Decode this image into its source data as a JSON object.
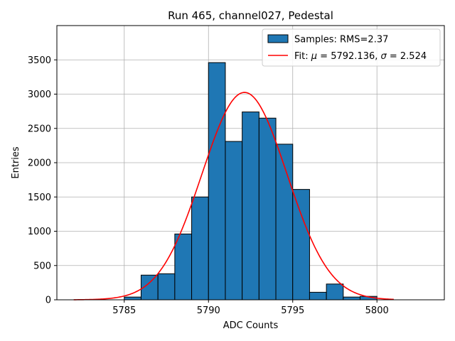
{
  "chart_data": {
    "type": "bar",
    "title": "Run 465, channel027, Pedestal",
    "xlabel": "ADC Counts",
    "ylabel": "Entries",
    "xlim": [
      5781.0,
      5804.0
    ],
    "ylim": [
      0,
      4000
    ],
    "grid": true,
    "xticks": [
      5785,
      5790,
      5795,
      5800
    ],
    "yticks": [
      0,
      500,
      1000,
      1500,
      2000,
      2500,
      3000,
      3500
    ],
    "histogram": {
      "name": "Samples: RMS=2.37",
      "color": "#1f77b4",
      "bin_edges": [
        5785,
        5786,
        5787,
        5788,
        5789,
        5790,
        5791,
        5792,
        5793,
        5794,
        5795,
        5796,
        5797,
        5798,
        5799,
        5800
      ],
      "counts": [
        40,
        360,
        380,
        960,
        1500,
        3460,
        2310,
        2740,
        2650,
        2270,
        1610,
        110,
        230,
        40,
        50
      ]
    },
    "fit": {
      "name": "Fit: μ = 5792.136, σ = 2.524",
      "name_prefix": "Fit: ",
      "mu_symbol": "μ",
      "mu_text": " = 5792.136, ",
      "sigma_symbol": "σ",
      "sigma_text": " = 2.524",
      "color": "#ff0000",
      "mu": 5792.136,
      "sigma": 2.524,
      "amplitude": 3025,
      "x_range": [
        5782.0,
        5801.0
      ]
    },
    "legend": {
      "position": "top-right"
    }
  }
}
